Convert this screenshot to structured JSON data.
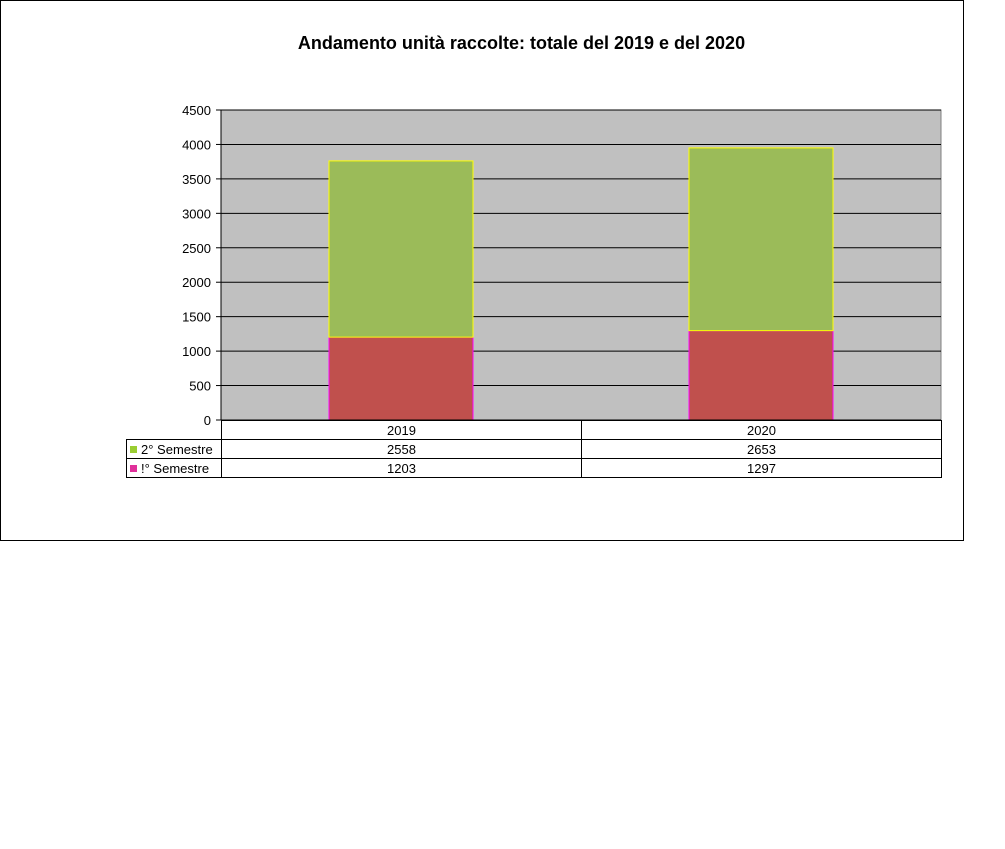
{
  "chart_data": {
    "type": "bar",
    "stacked": true,
    "title": "Andamento unità raccolte: totale del 2019 e del 2020",
    "categories": [
      "2019",
      "2020"
    ],
    "series": [
      {
        "name": "!° Semestre",
        "values": [
          1203,
          1297
        ],
        "fill": "#c0504d",
        "edge": "#ff00ff"
      },
      {
        "name": "2° Semestre",
        "values": [
          2558,
          2653
        ],
        "fill": "#9bbb59",
        "edge": "#ffff00"
      }
    ],
    "table_order": [
      1,
      0
    ],
    "legend_colors": {
      "2° Semestre": "#9acd32",
      "!° Semestre": "#e0309a"
    },
    "ylim": [
      0,
      4500
    ],
    "yticks": [
      0,
      500,
      1000,
      1500,
      2000,
      2500,
      3000,
      3500,
      4000,
      4500
    ],
    "grid": true,
    "plot_background": "#c0c0c0",
    "legend": "data-table"
  }
}
